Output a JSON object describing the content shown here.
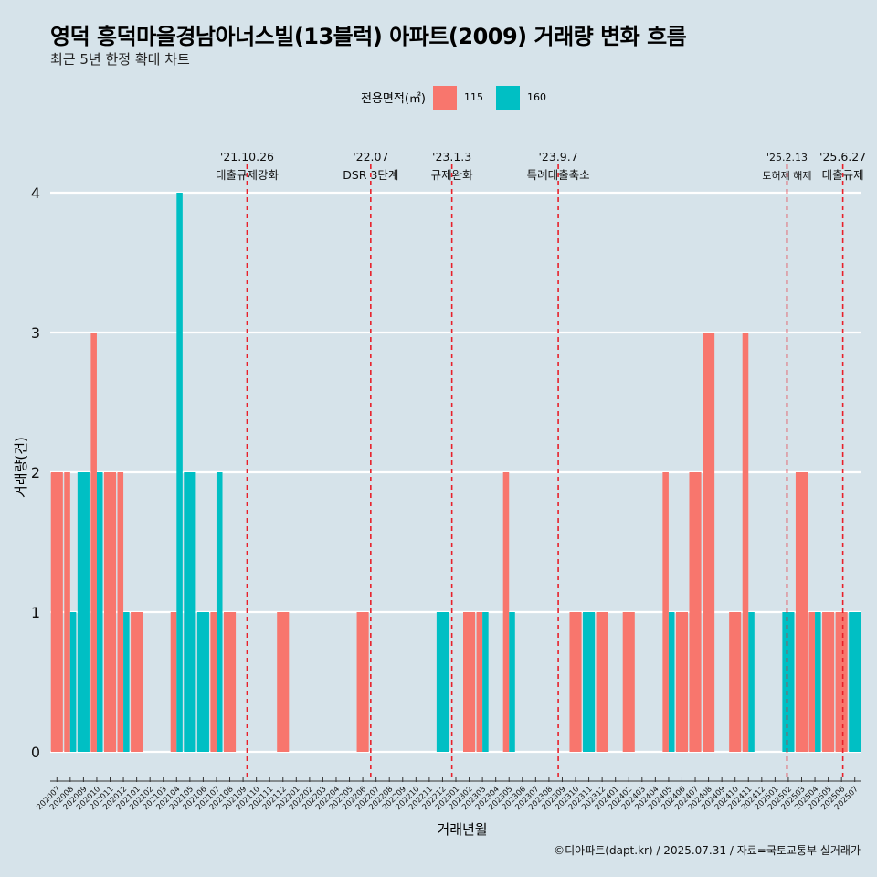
{
  "title": "영덕 흥덕마을경남아너스빌(13블럭) 아파트(2009) 거래량 변화 흐름",
  "subtitle": "최근 5년 한정 확대 차트",
  "caption": "©디아파트(dapt.kr) / 2025.07.31 / 자료=국토교통부 실거래가",
  "legend": {
    "title": "전용면적(㎡)",
    "items": [
      {
        "label": "115",
        "color": "#f8766d"
      },
      {
        "label": "160",
        "color": "#00bfc4"
      }
    ]
  },
  "chart_data": {
    "type": "bar",
    "xlabel": "거래년월",
    "ylabel": "거래량(건)",
    "ylim": [
      0,
      4
    ],
    "yticks": [
      0,
      1,
      2,
      3,
      4
    ],
    "grid": true,
    "categories": [
      "202007",
      "202008",
      "202009",
      "202010",
      "202011",
      "202012",
      "202101",
      "202102",
      "202103",
      "202104",
      "202105",
      "202106",
      "202107",
      "202108",
      "202109",
      "202110",
      "202111",
      "202112",
      "202201",
      "202202",
      "202203",
      "202204",
      "202205",
      "202206",
      "202207",
      "202208",
      "202209",
      "202210",
      "202211",
      "202212",
      "202301",
      "202302",
      "202303",
      "202304",
      "202305",
      "202306",
      "202307",
      "202308",
      "202309",
      "202310",
      "202311",
      "202312",
      "202401",
      "202402",
      "202403",
      "202404",
      "202405",
      "202406",
      "202407",
      "202408",
      "202409",
      "202410",
      "202411",
      "202412",
      "202501",
      "202502",
      "202503",
      "202504",
      "202505",
      "202506",
      "202507"
    ],
    "series": [
      {
        "name": "115",
        "color": "#f8766d",
        "values": [
          2,
          2,
          0,
          3,
          2,
          2,
          1,
          0,
          0,
          1,
          0,
          0,
          1,
          1,
          0,
          0,
          0,
          1,
          0,
          0,
          0,
          0,
          0,
          1,
          0,
          0,
          0,
          0,
          0,
          0,
          0,
          1,
          1,
          0,
          2,
          0,
          0,
          0,
          0,
          1,
          0,
          1,
          0,
          1,
          0,
          0,
          2,
          1,
          2,
          3,
          0,
          1,
          3,
          0,
          0,
          0,
          2,
          1,
          1,
          1,
          0
        ]
      },
      {
        "name": "160",
        "color": "#00bfc4",
        "values": [
          0,
          1,
          2,
          2,
          0,
          1,
          0,
          0,
          0,
          4,
          2,
          1,
          2,
          0,
          0,
          0,
          0,
          0,
          0,
          0,
          0,
          0,
          0,
          0,
          0,
          0,
          0,
          0,
          0,
          1,
          0,
          0,
          1,
          0,
          1,
          0,
          0,
          0,
          0,
          0,
          1,
          0,
          0,
          0,
          0,
          0,
          1,
          0,
          0,
          0,
          0,
          0,
          1,
          0,
          0,
          1,
          0,
          1,
          0,
          0,
          1
        ]
      }
    ],
    "annotations": [
      {
        "position": 14.8,
        "date": "'21.10.26",
        "label": "대출규제강화"
      },
      {
        "position": 24.1,
        "date": "'22.07",
        "label": "DSR 3단계"
      },
      {
        "position": 30.2,
        "date": "'23.1.3",
        "label": "규제완화"
      },
      {
        "position": 38.2,
        "date": "'23.9.7",
        "label": "특례대출축소"
      },
      {
        "position": 55.4,
        "date": "'25.2.13",
        "label": "토허제 해제"
      },
      {
        "position": 59.6,
        "date": "'25.6.27",
        "label": "대출규제"
      }
    ]
  }
}
